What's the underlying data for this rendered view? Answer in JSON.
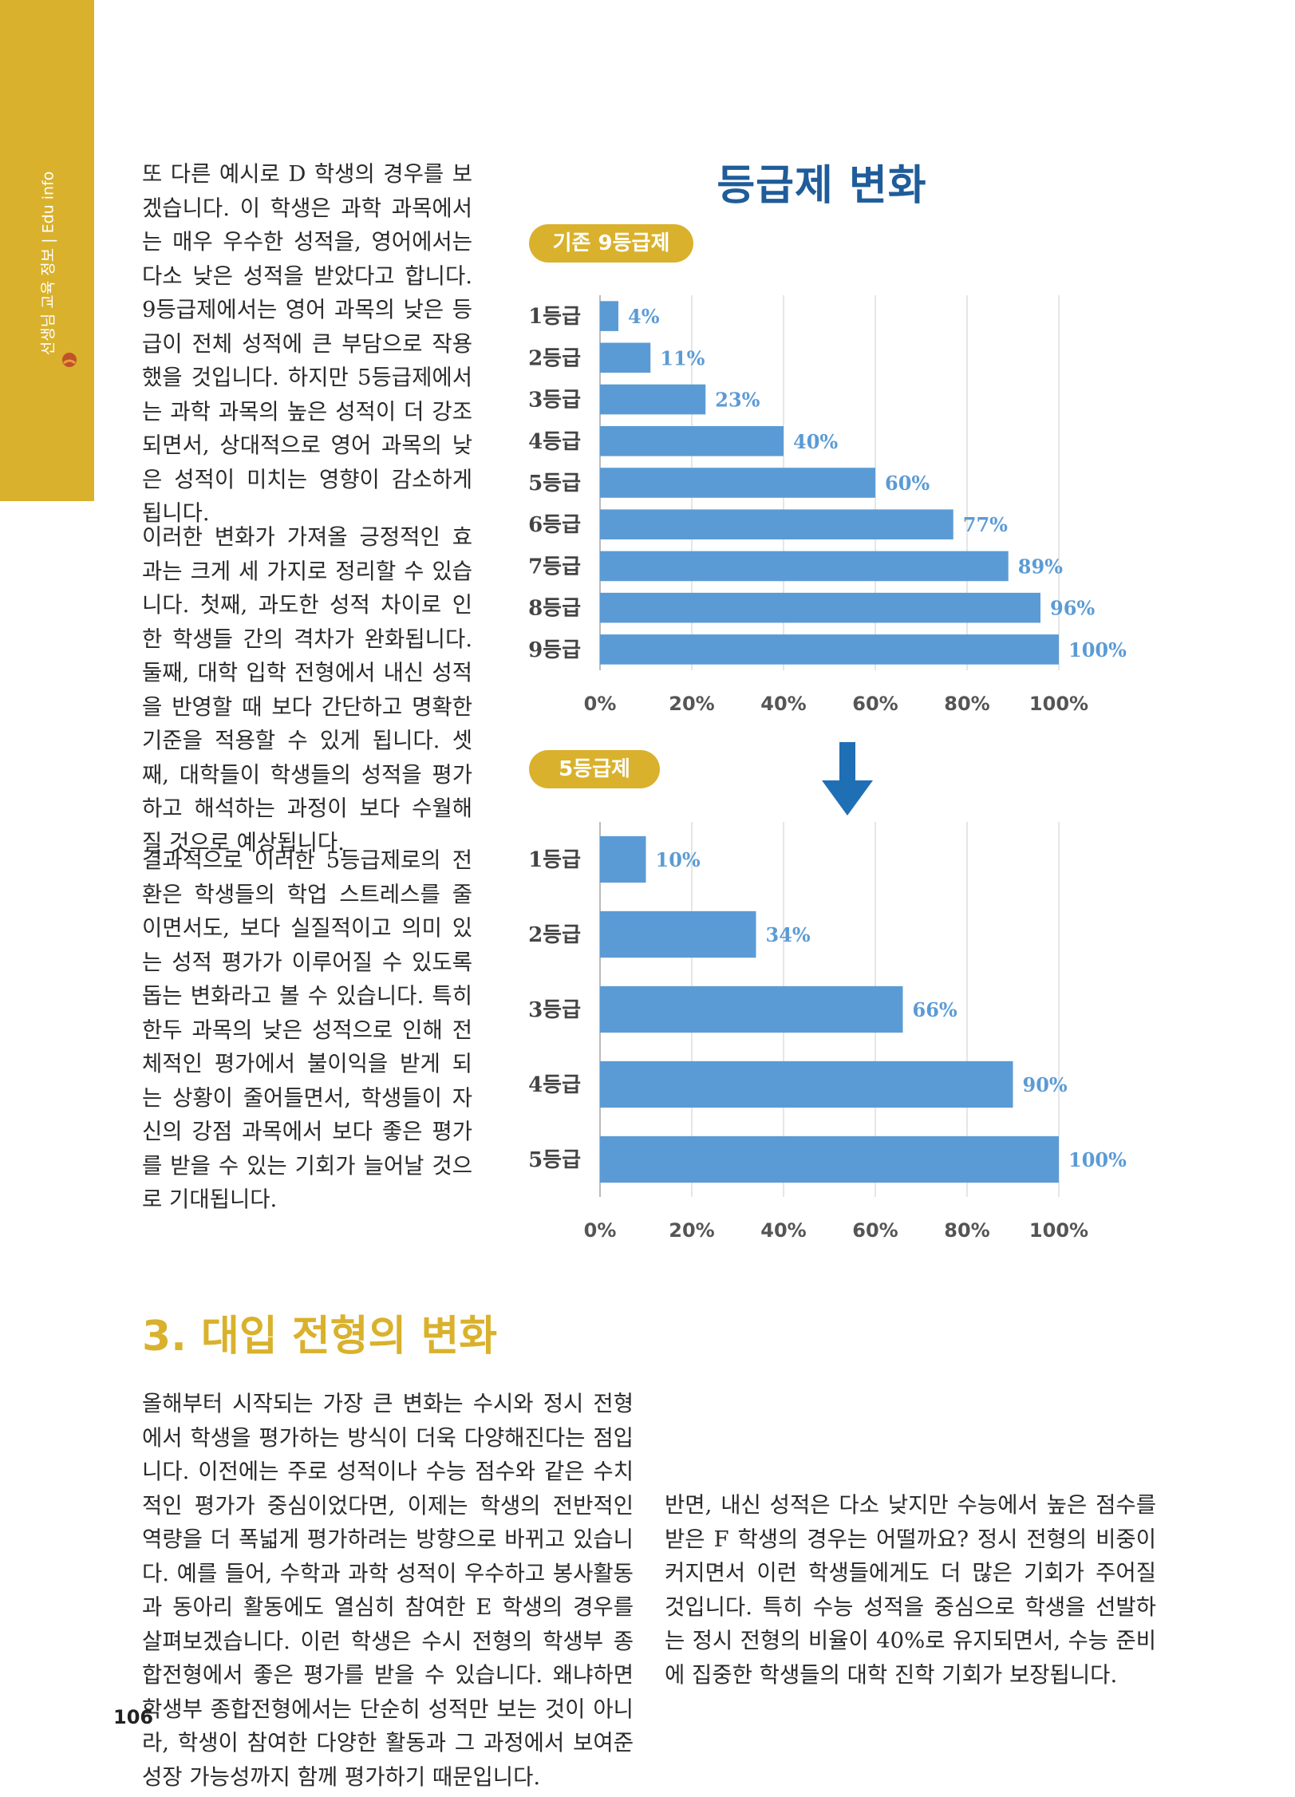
{
  "sidebar": {
    "label": "선생님 교육 정보 | Edu info",
    "icon": "sun-rise-icon",
    "color": "#D9B12C"
  },
  "left_column": {
    "paragraph_1": "또 다른 예시로 D 학생의 경우를 보겠습니다. 이 학생은 과학 과목에서는 매우 우수한 성적을, 영어에서는 다소 낮은 성적을 받았다고 합니다. 9등급제에서는 영어 과목의 낮은 등급이 전체 성적에 큰 부담으로 작용했을 것입니다. 하지만 5등급제에서는 과학 과목의 높은 성적이 더 강조되면서, 상대적으로 영어 과목의 낮은 성적이 미치는 영향이 감소하게 됩니다.",
    "paragraph_2": "이러한 변화가 가져올 긍정적인 효과는 크게 세 가지로 정리할 수 있습니다. 첫째, 과도한 성적 차이로 인한 학생들 간의 격차가 완화됩니다. 둘째, 대학 입학 전형에서 내신 성적을 반영할 때 보다 간단하고 명확한 기준을 적용할 수 있게 됩니다. 셋째, 대학들이 학생들의 성적을 평가하고 해석하는 과정이 보다 수월해질 것으로 예상됩니다.",
    "paragraph_3": "결과적으로 이러한 5등급제로의 전환은 학생들의 학업 스트레스를 줄이면서도, 보다 실질적이고 의미 있는 성적 평가가 이루어질 수 있도록 돕는 변화라고 볼 수 있습니다. 특히 한두 과목의 낮은 성적으로 인해 전체적인 평가에서 불이익을 받게 되는 상황이 줄어들면서, 학생들이 자신의 강점 과목에서 보다 좋은 평가를 받을 수 있는 기회가 늘어날 것으로 기대됩니다."
  },
  "figure": {
    "title": "등급제 변화",
    "arrow_icon": "down-arrow-icon",
    "colors": {
      "bar": "#5B9BD5",
      "label": "#5B9BD5",
      "title": "#1F5C9A",
      "pill": "#D9B12C",
      "arrow": "#1F6FB5"
    }
  },
  "chart_data": [
    {
      "type": "bar",
      "orientation": "horizontal",
      "title": "기존 9등급제",
      "categories": [
        "1등급",
        "2등급",
        "3등급",
        "4등급",
        "5등급",
        "6등급",
        "7등급",
        "8등급",
        "9등급"
      ],
      "values": [
        4,
        11,
        23,
        40,
        60,
        77,
        89,
        96,
        100
      ],
      "value_labels": [
        "4%",
        "11%",
        "23%",
        "40%",
        "60%",
        "77%",
        "89%",
        "96%",
        "100%"
      ],
      "xlim": [
        0,
        100
      ],
      "x_ticks": [
        "0%",
        "20%",
        "40%",
        "60%",
        "80%",
        "100%"
      ],
      "grid": true
    },
    {
      "type": "bar",
      "orientation": "horizontal",
      "title": "5등급제",
      "categories": [
        "1등급",
        "2등급",
        "3등급",
        "4등급",
        "5등급"
      ],
      "values": [
        10,
        34,
        66,
        90,
        100
      ],
      "value_labels": [
        "10%",
        "34%",
        "66%",
        "90%",
        "100%"
      ],
      "xlim": [
        0,
        100
      ],
      "x_ticks": [
        "0%",
        "20%",
        "40%",
        "60%",
        "80%",
        "100%"
      ],
      "grid": true
    }
  ],
  "section": {
    "heading": "3. 대입 전형의 변화",
    "paragraph_1": "올해부터 시작되는 가장 큰 변화는 수시와 정시 전형에서 학생을 평가하는 방식이 더욱 다양해진다는 점입니다. 이전에는 주로 성적이나 수능 점수와 같은 수치적인 평가가 중심이었다면, 이제는 학생의 전반적인 역량을 더 폭넓게 평가하려는 방향으로 바뀌고 있습니다. 예를 들어, 수학과 과학 성적이 우수하고 봉사활동과 동아리 활동에도 열심히 참여한 E 학생의 경우를 살펴보겠습니다. 이런 학생은 수시 전형의 학생부 종합전형에서 좋은 평가를 받을 수 있습니다. 왜냐하면 학생부 종합전형에서는 단순히 성적만 보는 것이 아니라, 학생이 참여한 다양한 활동과 그 과정에서 보여준 성장 가능성까지 함께 평가하기 때문입니다.",
    "paragraph_2": "반면, 내신 성적은 다소 낮지만 수능에서 높은 점수를 받은 F 학생의 경우는 어떨까요? 정시 전형의 비중이 커지면서 이런 학생들에게도 더 많은 기회가 주어질 것입니다. 특히 수능 성적을 중심으로 학생을 선발하는 정시 전형의 비율이 40%로 유지되면서, 수능 준비에 집중한 학생들의 대학 진학 기회가 보장됩니다."
  },
  "page_number": "106"
}
